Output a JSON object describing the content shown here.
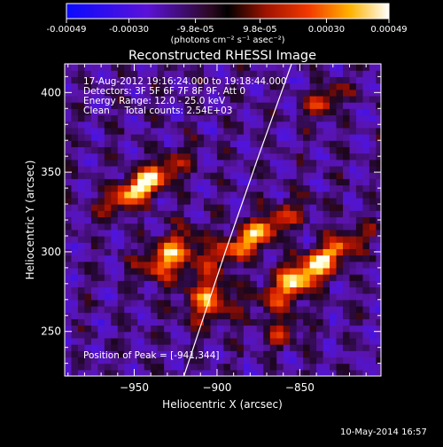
{
  "chart_data": {
    "type": "heatmap",
    "title": "Reconstructed RHESSI Image",
    "xlabel": "Heliocentric X (arcsec)",
    "ylabel": "Heliocentric Y (arcsec)",
    "xlim": [
      -992,
      -900.5
    ],
    "ylim": [
      222,
      418
    ],
    "xlim_fix": [
      -992,
      -900
    ],
    "xticks": [
      -950,
      -900,
      -850
    ],
    "yticks": [
      250,
      300,
      350,
      400
    ],
    "colorbar": {
      "min": -0.00049,
      "max": 0.00049,
      "tick_values": [
        -0.00049,
        -0.0003,
        -9.8e-05,
        9.8e-05,
        0.0003,
        0.00049
      ],
      "tick_labels": [
        "-0.00049",
        "-0.00030",
        "-9.8e-05",
        "9.8e-05",
        "0.00030",
        "0.00049"
      ],
      "unit_label": "(photons cm⁻² s⁻¹ asec⁻²)"
    },
    "annotations": {
      "time_range": "17-Aug-2012 19:16:24.000 to 19:18:44.000",
      "detectors": "Detectors: 3F 5F 6F 7F 8F 9F, Att 0",
      "energy_range": "Energy Range: 12.0 - 25.0 keV",
      "clean_counts": "Clean     Total counts: 2.54E+03",
      "peak": "Position of Peak = [-941,344]"
    },
    "peak_position": [
      -941,
      344
    ],
    "limb_curve": {
      "x": [
        -920,
        -895,
        -875,
        -855
      ],
      "y": [
        222,
        300,
        360,
        418
      ]
    },
    "bright_sources": [
      {
        "x": -945,
        "y": 342,
        "amp": 1.0,
        "sx": 6,
        "sy": 18
      },
      {
        "x": -928,
        "y": 298,
        "amp": 0.78,
        "sx": 8,
        "sy": 14
      },
      {
        "x": -905,
        "y": 270,
        "amp": 0.72,
        "sx": 9,
        "sy": 10
      },
      {
        "x": -878,
        "y": 310,
        "amp": 0.8,
        "sx": 6,
        "sy": 22
      },
      {
        "x": -852,
        "y": 282,
        "amp": 0.78,
        "sx": 7,
        "sy": 18
      },
      {
        "x": -830,
        "y": 300,
        "amp": 0.55,
        "sx": 6,
        "sy": 18
      },
      {
        "x": -835,
        "y": 395,
        "amp": 0.55,
        "sx": 5,
        "sy": 10
      },
      {
        "x": -860,
        "y": 250,
        "amp": 0.45,
        "sx": 6,
        "sy": 8
      }
    ]
  },
  "footer": {
    "date": "10-May-2014 16:57"
  }
}
